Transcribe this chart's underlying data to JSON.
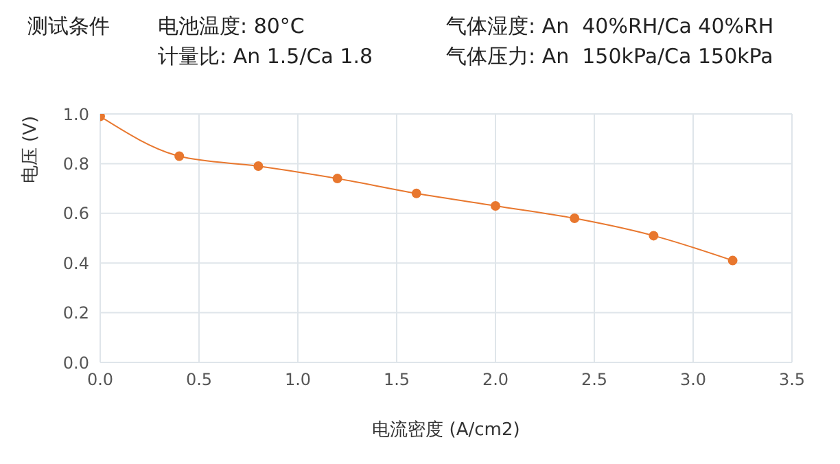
{
  "chart_data": {
    "type": "line",
    "title": "测试条件",
    "annotations": [
      "电池温度: 80°C",
      "计量比: An 1.5/Ca 1.8",
      "气体湿度: An  40%RH/Ca 40%RH",
      "气体压力: An  150kPa/Ca 150kPa"
    ],
    "xlabel": "电流密度 (A/cm2)",
    "ylabel": "电压 (V)",
    "x": [
      0,
      0.4,
      0.8,
      1.2,
      1.6,
      2.0,
      2.4,
      2.8,
      3.2
    ],
    "series": [
      {
        "color": "#e8772e",
        "values": [
          0.99,
          0.83,
          0.79,
          0.74,
          0.68,
          0.63,
          0.58,
          0.51,
          0.41
        ]
      }
    ],
    "xlim": [
      0,
      3.5
    ],
    "xticks": [
      {
        "value": 0,
        "label": "0.0"
      },
      0.5,
      {
        "value": 1,
        "label": "1.0"
      },
      1.5,
      {
        "value": 2,
        "label": "2.0"
      },
      2.5,
      {
        "value": 3,
        "label": "3.0"
      },
      3.5
    ],
    "ylim": [
      0,
      1
    ],
    "yticks": [
      {
        "value": 0,
        "label": "0.0"
      },
      0.2,
      0.4,
      0.6,
      0.8,
      {
        "value": 1,
        "label": "1.0"
      }
    ],
    "grid": true,
    "legend": false,
    "marker": "circle",
    "line_style": "solid"
  }
}
